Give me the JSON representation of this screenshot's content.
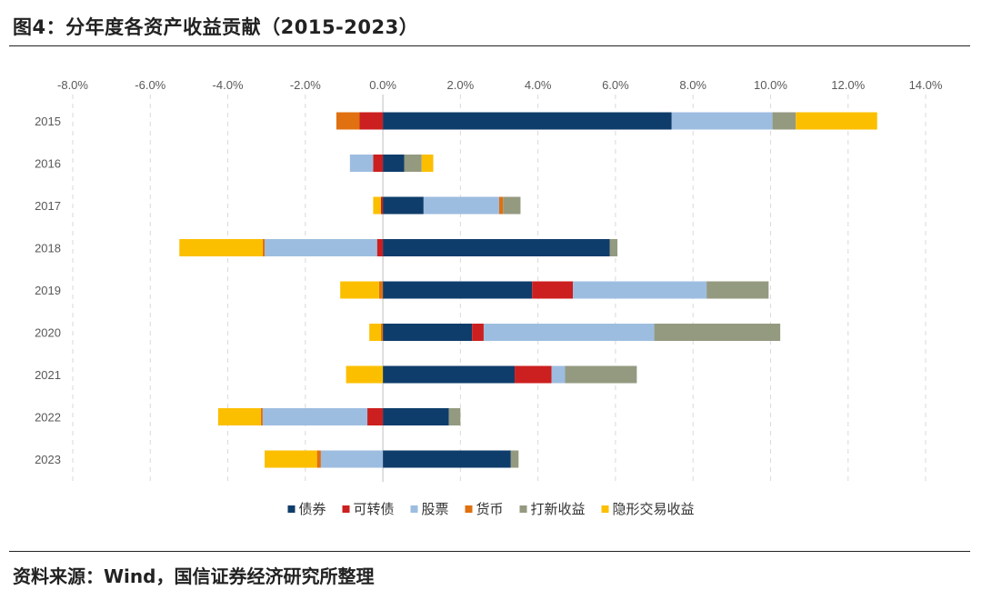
{
  "title": "图4：分年度各资产收益贡献（2015-2023）",
  "source": "资料来源：Wind，国信证券经济研究所整理",
  "chart_data": {
    "type": "bar",
    "orientation": "horizontal",
    "stacked": true,
    "categories": [
      "2015",
      "2016",
      "2017",
      "2018",
      "2019",
      "2020",
      "2021",
      "2022",
      "2023"
    ],
    "xlim": [
      -8,
      14
    ],
    "xticks": [
      "-8.0%",
      "-6.0%",
      "-4.0%",
      "-2.0%",
      "0.0%",
      "2.0%",
      "4.0%",
      "6.0%",
      "8.0%",
      "10.0%",
      "12.0%",
      "14.0%"
    ],
    "grid": "vertical dashed",
    "legend_position": "bottom",
    "series": [
      {
        "name": "债券",
        "color": "#0f3d6b",
        "values": [
          7.45,
          0.55,
          1.05,
          5.85,
          3.85,
          2.3,
          3.4,
          1.7,
          3.3
        ]
      },
      {
        "name": "可转债",
        "color": "#cc1f1f",
        "values": [
          -0.6,
          -0.25,
          -0.05,
          -0.15,
          1.05,
          0.3,
          0.95,
          -0.4,
          0.0
        ]
      },
      {
        "name": "股票",
        "color": "#9dbde0",
        "values": [
          2.6,
          -0.6,
          1.95,
          -2.9,
          3.45,
          4.4,
          0.35,
          -2.7,
          -1.6
        ]
      },
      {
        "name": "货币",
        "color": "#e07010",
        "values": [
          -0.6,
          0.0,
          0.1,
          -0.05,
          -0.1,
          -0.05,
          0.0,
          -0.05,
          -0.1
        ]
      },
      {
        "name": "打新收益",
        "color": "#949a80",
        "values": [
          0.6,
          0.45,
          0.45,
          0.2,
          1.6,
          3.25,
          1.85,
          0.3,
          0.2
        ]
      },
      {
        "name": "隐形交易收益",
        "color": "#fbbf00",
        "values": [
          2.1,
          0.3,
          -0.2,
          -2.15,
          -1.0,
          -0.3,
          -0.95,
          -1.1,
          -1.35
        ]
      }
    ]
  }
}
